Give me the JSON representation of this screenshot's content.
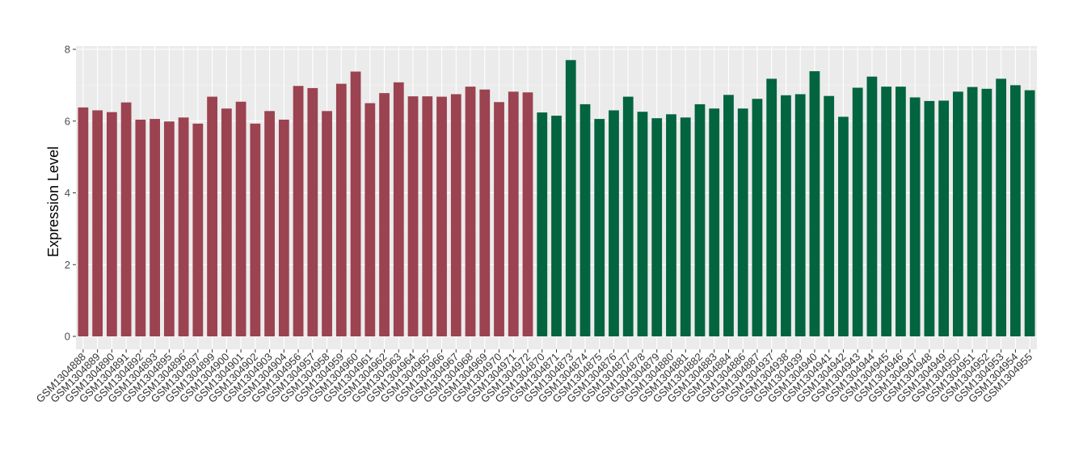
{
  "chart_data": {
    "type": "bar",
    "title": "",
    "xlabel": "",
    "ylabel": "Expression Level",
    "ylim": [
      0,
      8
    ],
    "yticks": [
      0,
      2,
      4,
      6,
      8
    ],
    "grid": true,
    "legend": "none",
    "panel_color": "#ebebeb",
    "group_colors": [
      "#9b4350",
      "#036440"
    ],
    "categories": [
      "GSM1304888",
      "GSM1304889",
      "GSM1304890",
      "GSM1304891",
      "GSM1304892",
      "GSM1304893",
      "GSM1304895",
      "GSM1304896",
      "GSM1304897",
      "GSM1304899",
      "GSM1304900",
      "GSM1304901",
      "GSM1304902",
      "GSM1304903",
      "GSM1304904",
      "GSM1304956",
      "GSM1304957",
      "GSM1304958",
      "GSM1304959",
      "GSM1304960",
      "GSM1304961",
      "GSM1304962",
      "GSM1304963",
      "GSM1304964",
      "GSM1304965",
      "GSM1304966",
      "GSM1304967",
      "GSM1304968",
      "GSM1304969",
      "GSM1304970",
      "GSM1304971",
      "GSM1304972",
      "GSM1304870",
      "GSM1304871",
      "GSM1304873",
      "GSM1304874",
      "GSM1304875",
      "GSM1304876",
      "GSM1304877",
      "GSM1304878",
      "GSM1304879",
      "GSM1304880",
      "GSM1304881",
      "GSM1304882",
      "GSM1304883",
      "GSM1304884",
      "GSM1304886",
      "GSM1304887",
      "GSM1304937",
      "GSM1304938",
      "GSM1304939",
      "GSM1304940",
      "GSM1304941",
      "GSM1304942",
      "GSM1304943",
      "GSM1304944",
      "GSM1304945",
      "GSM1304946",
      "GSM1304947",
      "GSM1304948",
      "GSM1304949",
      "GSM1304950",
      "GSM1304951",
      "GSM1304952",
      "GSM1304953",
      "GSM1304954",
      "GSM1304955"
    ],
    "values": [
      6.38,
      6.3,
      6.25,
      6.52,
      6.04,
      6.06,
      5.99,
      6.1,
      5.93,
      6.68,
      6.35,
      6.54,
      5.93,
      6.28,
      6.04,
      6.98,
      6.92,
      6.28,
      7.04,
      7.38,
      6.5,
      6.78,
      7.08,
      6.69,
      6.69,
      6.68,
      6.75,
      6.96,
      6.88,
      6.53,
      6.82,
      6.8,
      6.24,
      6.15,
      7.7,
      6.47,
      6.06,
      6.3,
      6.68,
      6.26,
      6.08,
      6.19,
      6.1,
      6.47,
      6.35,
      6.73,
      6.35,
      6.62,
      7.18,
      6.72,
      6.75,
      7.39,
      6.7,
      6.12,
      6.93,
      7.24,
      6.96,
      6.96,
      6.66,
      6.56,
      6.57,
      6.82,
      6.95,
      6.9,
      7.18,
      7.0,
      6.86
    ],
    "groups": [
      0,
      0,
      0,
      0,
      0,
      0,
      0,
      0,
      0,
      0,
      0,
      0,
      0,
      0,
      0,
      0,
      0,
      0,
      0,
      0,
      0,
      0,
      0,
      0,
      0,
      0,
      0,
      0,
      0,
      0,
      0,
      0,
      1,
      1,
      1,
      1,
      1,
      1,
      1,
      1,
      1,
      1,
      1,
      1,
      1,
      1,
      1,
      1,
      1,
      1,
      1,
      1,
      1,
      1,
      1,
      1,
      1,
      1,
      1,
      1,
      1,
      1,
      1,
      1,
      1,
      1,
      1
    ]
  }
}
